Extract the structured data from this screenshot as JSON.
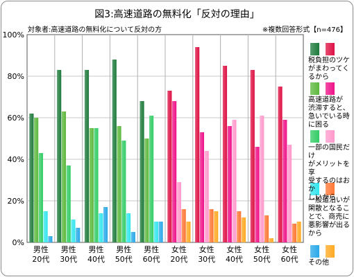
{
  "chart_data": {
    "type": "bar",
    "title": "図3:高速道路の無料化「反対の理由」",
    "subtitle": "対象者:高速道路の無料化について反対の方",
    "note": "※複数回答形式【n=476】",
    "yticks": [
      "0%",
      "20%",
      "40%",
      "60%",
      "80%",
      "100%"
    ],
    "ylim": [
      0,
      100
    ],
    "categories": [
      "男性\n20代",
      "男性\n30代",
      "男性\n40代",
      "男性\n50代",
      "男性\n60代",
      "女性\n20代",
      "女性\n30代",
      "女性\n40代",
      "女性\n50代",
      "女性\n60代"
    ],
    "series": [
      {
        "name": "税負担のツケがまわってくるから",
        "values": [
          62,
          83,
          83,
          88,
          68,
          73,
          94,
          85,
          83,
          75
        ]
      },
      {
        "name": "高速道路が渋滞すると、急いでいる時に困る",
        "values": [
          60,
          63,
          55,
          56,
          50,
          68,
          53,
          56,
          46,
          59
        ]
      },
      {
        "name": "一部の国民だけがメリットを享受するのはおかしいから",
        "values": [
          43,
          37,
          55,
          49,
          61,
          29,
          44,
          59,
          61,
          47
        ]
      },
      {
        "name": "一般道沿いが閑散となることで、商売に悪影響が出るから",
        "values": [
          15,
          11,
          14,
          14,
          10,
          16,
          16,
          15,
          13,
          9
        ]
      },
      {
        "name": "その他",
        "values": [
          3,
          7,
          17,
          5,
          10,
          10,
          15,
          12,
          2,
          10
        ]
      }
    ],
    "colors": {
      "male": [
        "#1e7a3c",
        "#5cb83c",
        "#33cc66",
        "#33e6ee",
        "#29a8e8"
      ],
      "female": [
        "#dd1144",
        "#ee1188",
        "#ff99cc",
        "#ff7733",
        "#ffaa22"
      ]
    },
    "legend_position": "right",
    "grid": true
  }
}
